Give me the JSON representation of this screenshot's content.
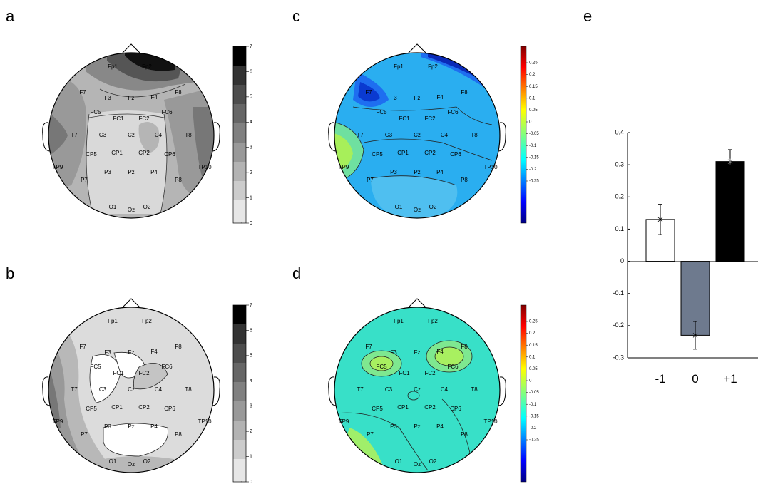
{
  "panel_labels": [
    "a",
    "b",
    "c",
    "d",
    "e"
  ],
  "electrodes": [
    "Fp1",
    "Fp2",
    "F7",
    "F3",
    "Fz",
    "F4",
    "F8",
    "FC5",
    "FC1",
    "FC2",
    "FC6",
    "T7",
    "C3",
    "Cz",
    "C4",
    "T8",
    "CP5",
    "CP1",
    "CP2",
    "CP6",
    "TP9",
    "TP10",
    "P7",
    "P3",
    "Pz",
    "P4",
    "P8",
    "O1",
    "Oz",
    "O2"
  ],
  "colorbars": {
    "gray": {
      "ticks": [
        "7",
        "6",
        "5",
        "4",
        "3",
        "2",
        "1",
        "0"
      ],
      "minus": "-"
    },
    "jet": {
      "ticks": [
        "0.25",
        "0.2",
        "0.15",
        "0.1",
        "0.05",
        "0",
        "-0.05",
        "-0.1",
        "-0.15",
        "-0.2",
        "-0.25"
      ]
    }
  },
  "colors": {
    "head_outline": "#000000",
    "bar_minus1": "#ffffff",
    "bar_0": "#6e7a8e",
    "bar_plus1": "#000000"
  },
  "chart_data": {
    "type": "bar",
    "categories": [
      "-1",
      "0",
      "+1"
    ],
    "values": [
      0.13,
      -0.23,
      0.31
    ],
    "errors": [
      0.047,
      0.043,
      0.037
    ],
    "ylim": [
      -0.3,
      0.4
    ],
    "yticks": [
      "0.4",
      "0.3",
      "0.2",
      "0.1",
      "0",
      "-0.1",
      "-0.2",
      "-0.3"
    ],
    "title": "",
    "xlabel": "",
    "ylabel": ""
  }
}
